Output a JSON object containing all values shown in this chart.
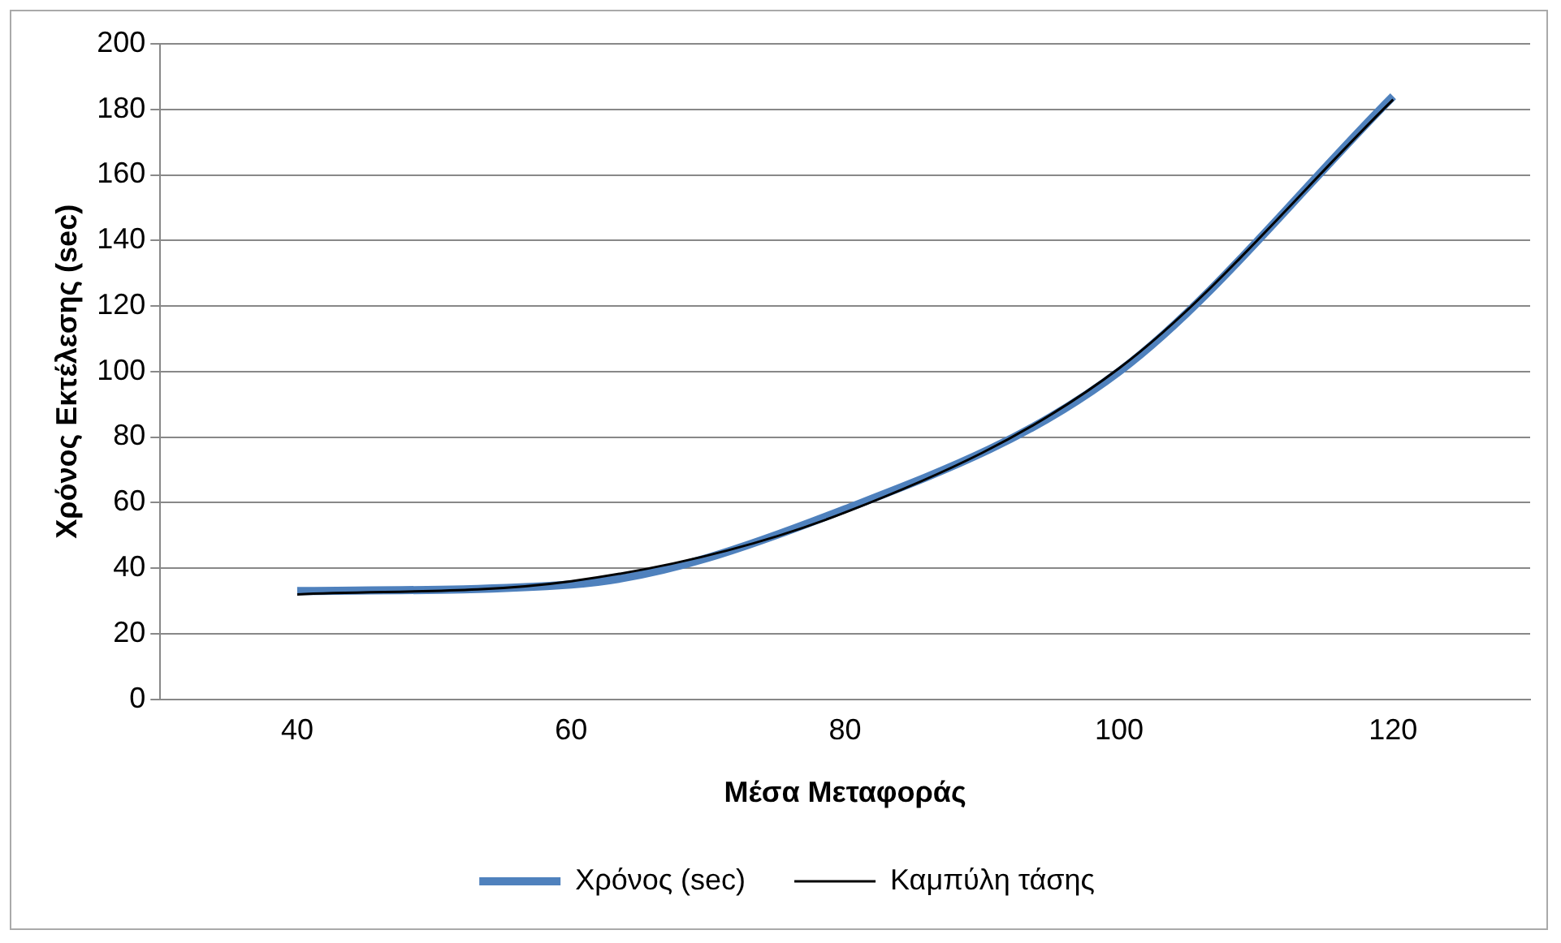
{
  "chart_data": {
    "type": "line",
    "xlabel": "Μέσα Μεταφοράς",
    "ylabel": "Χρόνος Εκτέλεσης (sec)",
    "categories": [
      "40",
      "60",
      "80",
      "100",
      "120"
    ],
    "series": [
      {
        "name": "Χρόνος (sec)",
        "color": "#4f81bd",
        "values": [
          33,
          35,
          58,
          100,
          184
        ]
      },
      {
        "name": "Καμπύλη τάσης",
        "color": "#000000",
        "values": [
          32,
          36,
          57,
          101,
          183
        ]
      }
    ],
    "ylim": [
      0,
      200
    ],
    "yticks": [
      0,
      20,
      40,
      60,
      80,
      100,
      120,
      140,
      160,
      180,
      200
    ],
    "grid": "y",
    "legend": "bottom",
    "marker": "none",
    "line_style": "solid"
  }
}
